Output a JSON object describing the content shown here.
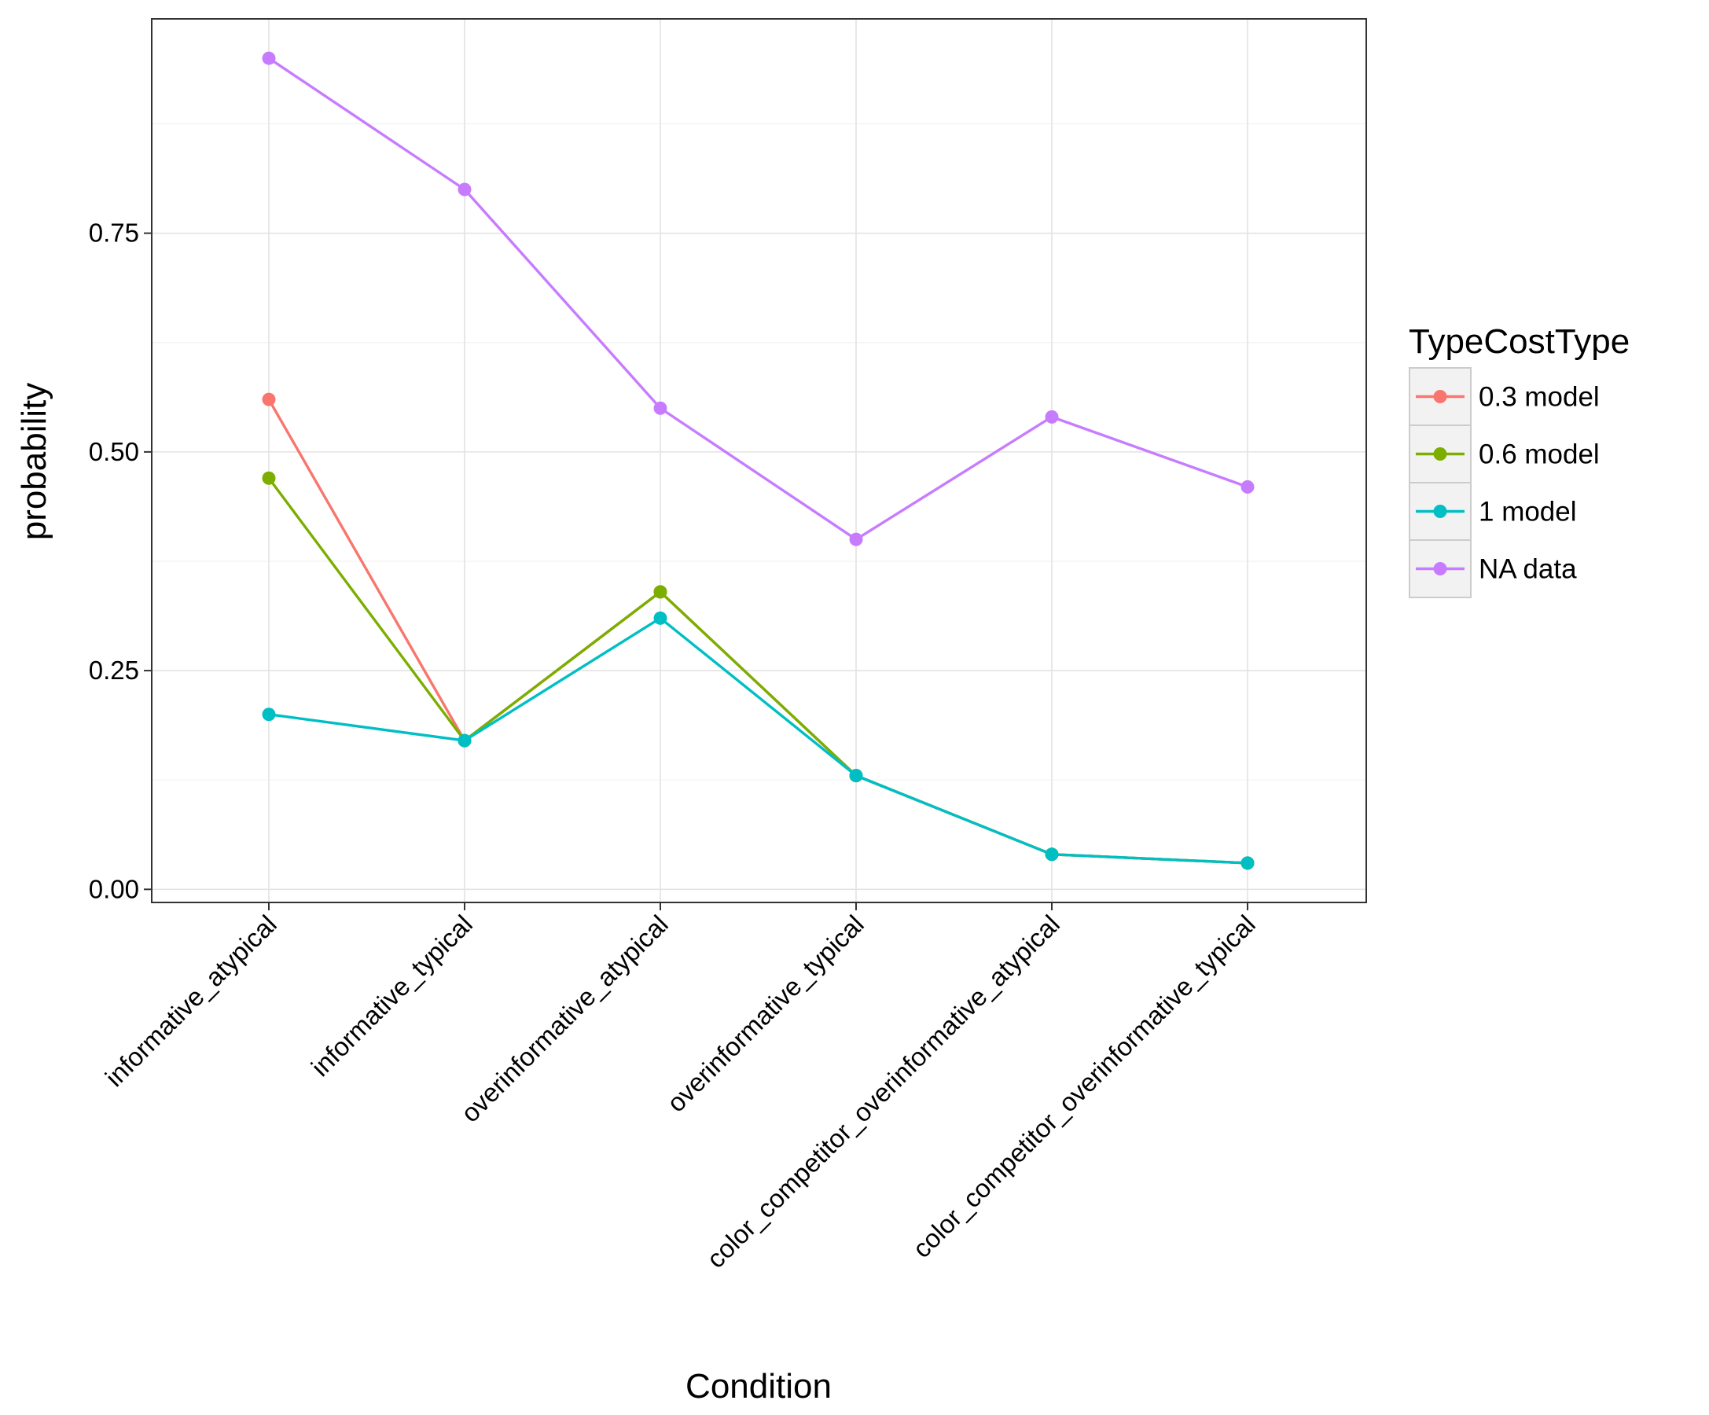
{
  "chart_data": {
    "type": "line",
    "title": "",
    "xlabel": "Condition",
    "ylabel": "probability",
    "categories": [
      "informative_atypical",
      "informative_typical",
      "overinformative_atypical",
      "overinformative_typical",
      "color_competitor_overinformative_atypical",
      "color_competitor_overinformative_typical"
    ],
    "y_ticks": [
      "0.00",
      "0.25",
      "0.50",
      "0.75"
    ],
    "ylim": [
      -0.015,
      0.995
    ],
    "grid": true,
    "legend": {
      "title": "TypeCostType",
      "placement": "right"
    },
    "series": [
      {
        "name": "0.3 model",
        "color": "#F8766D",
        "values": [
          0.56,
          0.17,
          0.34,
          0.13,
          0.04,
          0.03
        ]
      },
      {
        "name": "0.6 model",
        "color": "#7CAE00",
        "values": [
          0.47,
          0.17,
          0.34,
          0.13,
          0.04,
          0.03
        ]
      },
      {
        "name": "1 model",
        "color": "#00BFC4",
        "values": [
          0.2,
          0.17,
          0.31,
          0.13,
          0.04,
          0.03
        ]
      },
      {
        "name": "NA data",
        "color": "#C77CFF",
        "values": [
          0.95,
          0.8,
          0.55,
          0.4,
          0.54,
          0.46
        ]
      }
    ],
    "draw_order": [
      3,
      0,
      1,
      2
    ]
  }
}
